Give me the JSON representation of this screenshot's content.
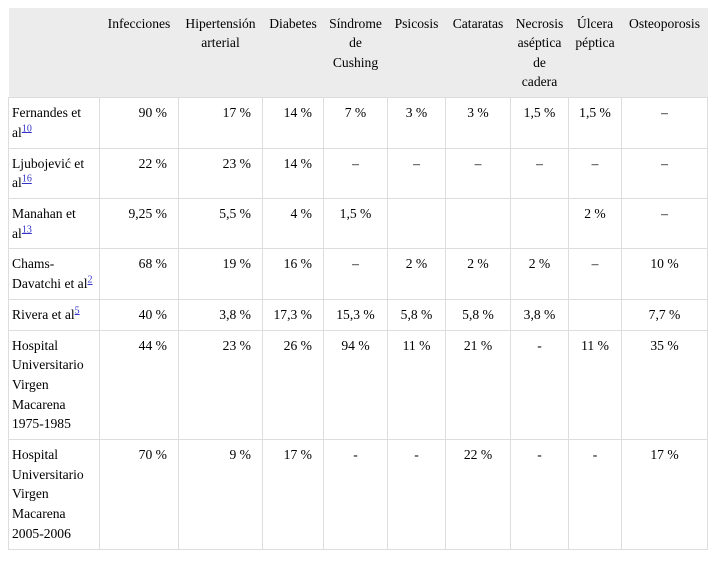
{
  "table": {
    "columns": [
      "",
      "Infecciones",
      "Hipertensión arterial",
      "Diabetes",
      "Síndrome de Cushing",
      "Psicosis",
      "Cataratas",
      "Necrosis aséptica de cadera",
      "Úlcera péptica",
      "Osteoporosis"
    ],
    "rows": [
      {
        "study": "Fernandes et al",
        "ref": "10",
        "values": [
          "90 %",
          "17 %",
          "14 %",
          "7 %",
          "3 %",
          "3 %",
          "1,5 %",
          "1,5 %",
          "–"
        ]
      },
      {
        "study": "Ljubojević et al",
        "ref": "16",
        "values": [
          "22 %",
          "23 %",
          "14 %",
          "–",
          "–",
          "–",
          "–",
          "–",
          "–"
        ]
      },
      {
        "study": "Manahan et al",
        "ref": "13",
        "values": [
          "9,25 %",
          "5,5 %",
          "4 %",
          "1,5 %",
          "",
          "",
          "",
          "2 %",
          "–"
        ]
      },
      {
        "study": "Chams-Davatchi et al",
        "ref": "2",
        "values": [
          "68 %",
          "19 %",
          "16 %",
          "–",
          "2 %",
          "2 %",
          "2 %",
          "–",
          "10 %"
        ]
      },
      {
        "study": "Rivera et al",
        "ref": "5",
        "values": [
          "40 %",
          "3,8 %",
          "17,3 %",
          "15,3 %",
          "5,8 %",
          "5,8 %",
          "3,8 %",
          "",
          "7,7 %"
        ]
      },
      {
        "study": "Hospital Universitario Virgen Macarena 1975-1985",
        "ref": "",
        "values": [
          "44 %",
          "23 %",
          "26 %",
          "94 %",
          "11 %",
          "21 %",
          "-",
          "11 %",
          "35 %"
        ]
      },
      {
        "study": "Hospital Universitario Virgen Macarena 2005-2006",
        "ref": "",
        "values": [
          "70 %",
          "9 %",
          "17 %",
          "-",
          "-",
          "22 %",
          "-",
          "-",
          "17 %"
        ]
      }
    ]
  },
  "colors": {
    "header_bg": "#ececec",
    "border": "#dddddd",
    "link_blue": "#3333cc"
  }
}
